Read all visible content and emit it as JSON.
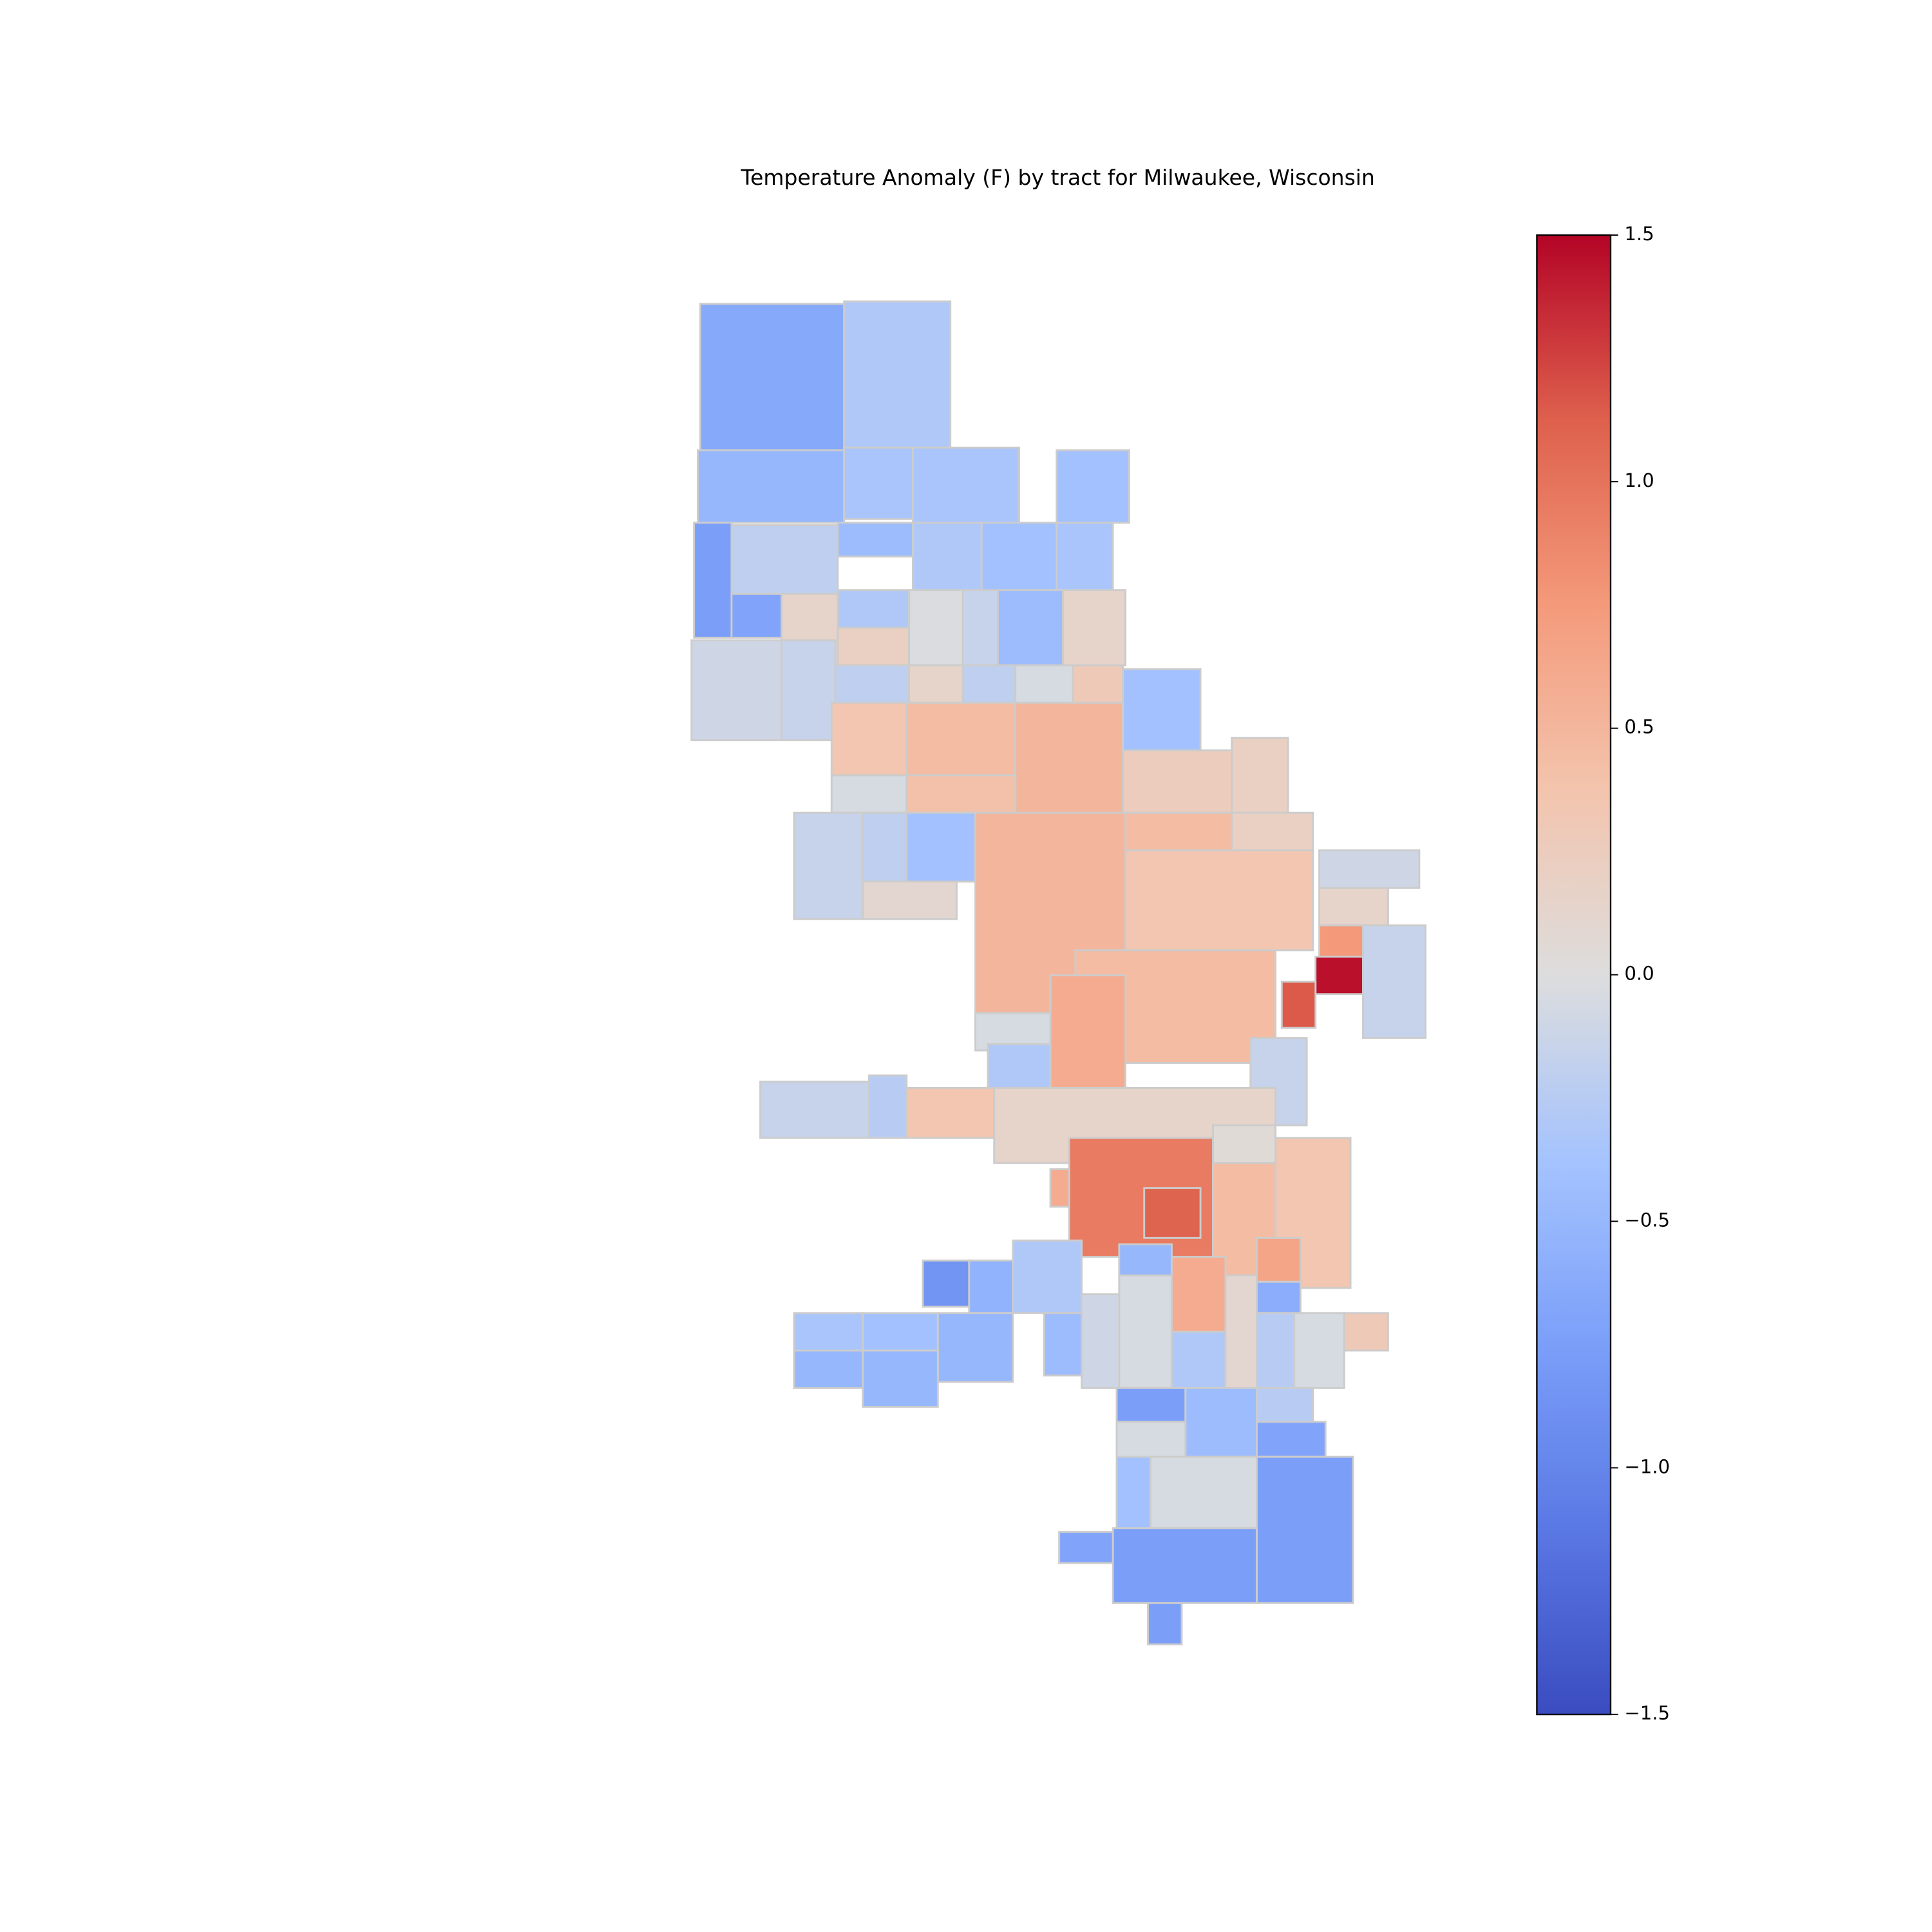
{
  "chart_data": {
    "type": "choropleth",
    "title": "Temperature Anomaly (F) by tract for Milwaukee, Wisconsin",
    "colormap": "coolwarm",
    "clim": [
      -1.5,
      1.5
    ],
    "cticks": [
      {
        "value": -1.5,
        "label": "−1.5"
      },
      {
        "value": -1.0,
        "label": "−1.0"
      },
      {
        "value": -0.5,
        "label": "−0.5"
      },
      {
        "value": 0.0,
        "label": "0.0"
      },
      0.5,
      {
        "value": 1.0,
        "label": "1.0"
      },
      1.5
    ],
    "values": [
      -0.65,
      -0.3,
      -0.5,
      -0.35,
      -0.35,
      -0.4,
      -0.75,
      -0.2,
      -0.45,
      -0.3,
      -0.4,
      -0.35,
      -0.7,
      0.15,
      -0.3,
      0.2,
      -0.02,
      -0.15,
      -0.45,
      0.15,
      -0.1,
      -0.15,
      -0.2,
      0.15,
      -0.2,
      -0.05,
      0.3,
      -0.4,
      0.35,
      0.45,
      0.5,
      -0.05,
      0.4,
      0.25,
      0.2,
      -0.15,
      -0.2,
      -0.4,
      0.5,
      0.45,
      0.2,
      -0.1,
      0.1,
      0.35,
      0.15,
      0.75,
      1.45,
      1.15,
      -0.15,
      0.45,
      -0.05,
      0.6,
      -0.15,
      -0.15,
      -0.25,
      0.35,
      -0.3,
      0.15,
      0.05,
      0.95,
      1.1,
      0.6,
      0.45,
      0.35,
      0.65,
      -0.85,
      -0.55,
      -0.3,
      -0.35,
      -0.4,
      -0.5,
      -0.5,
      -0.5,
      -0.45,
      -0.1,
      -0.5,
      -0.05,
      0.6,
      -0.3,
      0.1,
      -0.25,
      -0.05,
      0.3,
      -0.6,
      -0.75,
      -0.45,
      -0.25,
      -0.05,
      -0.7,
      -0.4,
      -0.05,
      -0.75,
      -0.75,
      -0.75,
      -0.7
    ]
  }
}
